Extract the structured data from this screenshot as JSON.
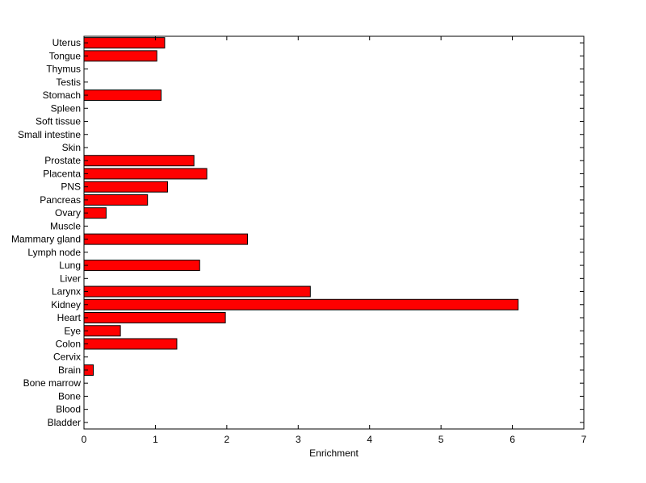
{
  "chart_data": {
    "type": "bar",
    "orientation": "horizontal",
    "title": "",
    "xlabel": "Enrichment",
    "ylabel": "",
    "xlim": [
      0,
      7
    ],
    "xticks": [
      0,
      1,
      2,
      3,
      4,
      5,
      6,
      7
    ],
    "grid": false,
    "bar_color": "#ff0000",
    "bar_edge_color": "#000000",
    "categories": [
      "Bladder",
      "Blood",
      "Bone",
      "Bone marrow",
      "Brain",
      "Cervix",
      "Colon",
      "Eye",
      "Heart",
      "Kidney",
      "Larynx",
      "Liver",
      "Lung",
      "Lymph node",
      "Mammary gland",
      "Muscle",
      "Ovary",
      "Pancreas",
      "PNS",
      "Placenta",
      "Prostate",
      "Skin",
      "Small intestine",
      "Soft tissue",
      "Spleen",
      "Stomach",
      "Testis",
      "Thymus",
      "Tongue",
      "Uterus"
    ],
    "values": [
      0,
      0,
      0,
      0,
      0.13,
      0,
      1.3,
      0.51,
      1.98,
      6.08,
      3.17,
      0,
      1.62,
      0,
      2.29,
      0,
      0.31,
      0.89,
      1.17,
      1.72,
      1.54,
      0,
      0,
      0,
      0,
      1.08,
      0,
      0,
      1.02,
      1.13
    ]
  }
}
